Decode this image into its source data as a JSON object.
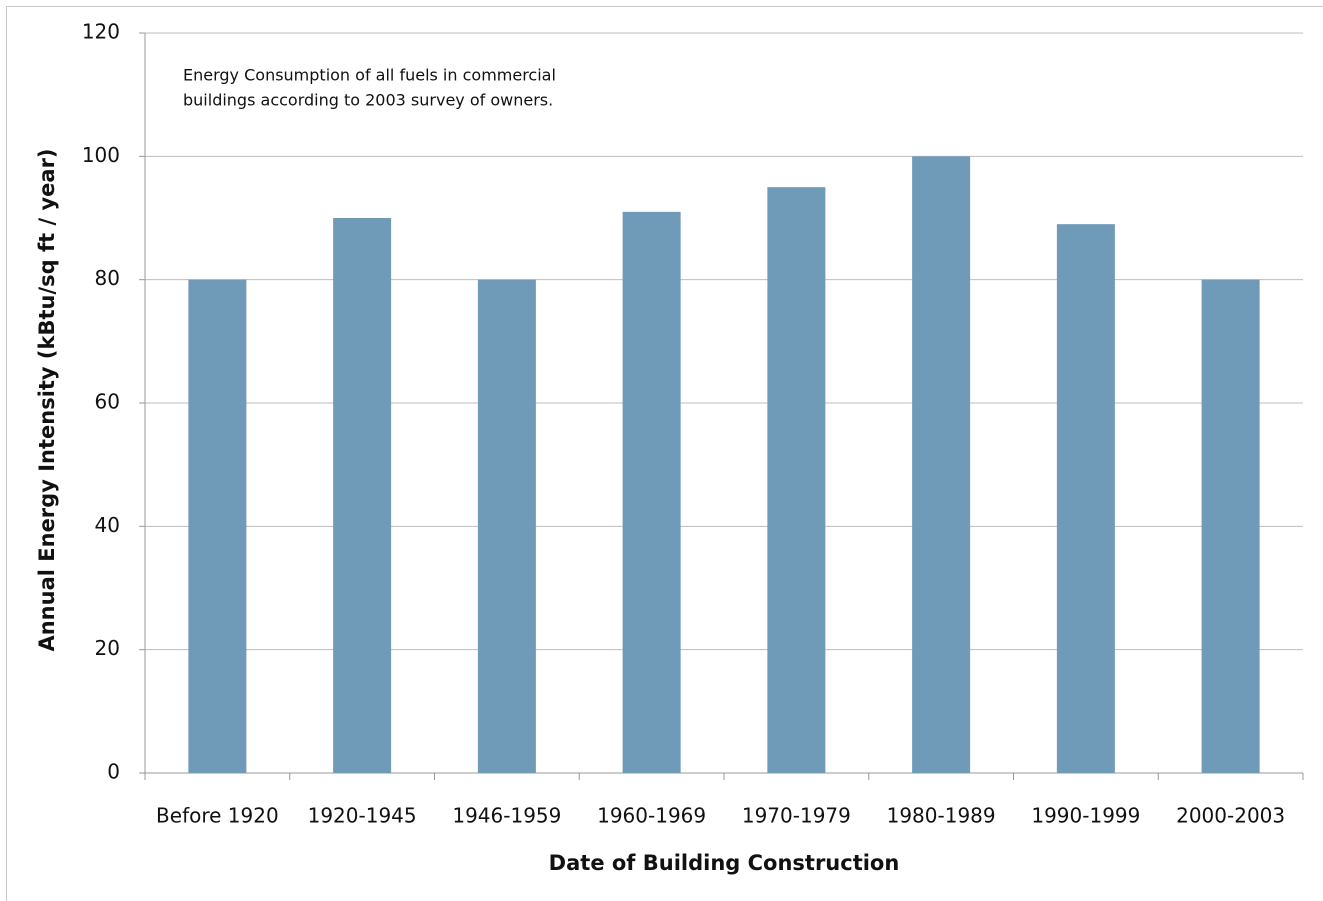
{
  "chart_data": {
    "type": "bar",
    "annotation": [
      "Energy Consumption of all fuels in commercial",
      "buildings according to 2003 survey of owners."
    ],
    "x_label": "Date of Building Construction",
    "y_label": "Annual Energy Intensity (kBtu/sq ft / year)",
    "categories": [
      "Before 1920",
      "1920-1945",
      "1946-1959",
      "1960-1969",
      "1970-1979",
      "1980-1989",
      "1990-1999",
      "2000-2003"
    ],
    "values": [
      80,
      90,
      80,
      91,
      95,
      100,
      89,
      80
    ],
    "color": "#6f9ab8",
    "ylim": [
      0,
      120
    ],
    "yticks": [
      0,
      20,
      40,
      60,
      80,
      100,
      120
    ],
    "grid": true
  }
}
